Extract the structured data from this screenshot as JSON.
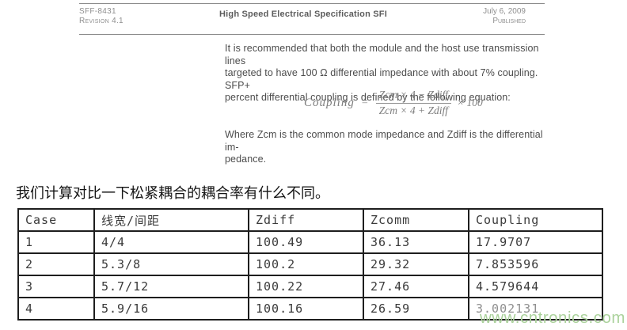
{
  "document": {
    "header": {
      "doc_number": "SFF-8431",
      "revision": "Revision 4.1",
      "title": "High Speed Electrical Specification SFI",
      "date": "July 6, 2009",
      "status": "Published"
    },
    "intro_lines": [
      "It is recommended that both the module and the host use transmission lines",
      "targeted to have 100 Ω differential impedance with about 7% coupling. SFP+",
      "percent differential coupling is defined by the following equation:"
    ],
    "equation": {
      "lhs": "Coupling",
      "equals": "=",
      "numerator": "Zcm × 4 − Zdiff",
      "denominator": "Zcm × 4 + Zdiff",
      "multiplier": "× 100"
    },
    "note_lines": [
      "Where Zcm is the common mode impedance and Zdiff is the differential im-",
      "pedance."
    ]
  },
  "caption": "我们计算对比一下松紧耦合的耦合率有什么不同。",
  "table": {
    "headers": [
      "Case",
      "线宽/间距",
      "Zdiff",
      "Zcomm",
      "Coupling"
    ],
    "rows": [
      [
        "1",
        "4/4",
        "100.49",
        "36.13",
        "17.9707"
      ],
      [
        "2",
        "5.3/8",
        "100.2",
        "29.32",
        "7.853596"
      ],
      [
        "3",
        "5.7/12",
        "100.22",
        "27.46",
        "4.579644"
      ],
      [
        "4",
        "5.9/16",
        "100.16",
        "26.59",
        "3.002131"
      ]
    ]
  },
  "watermark": "www.cntronics.com",
  "colors": {
    "watermark_green": "#abd29c",
    "table_border": "#1e1e1e",
    "body_text": "#4c4c4c"
  }
}
